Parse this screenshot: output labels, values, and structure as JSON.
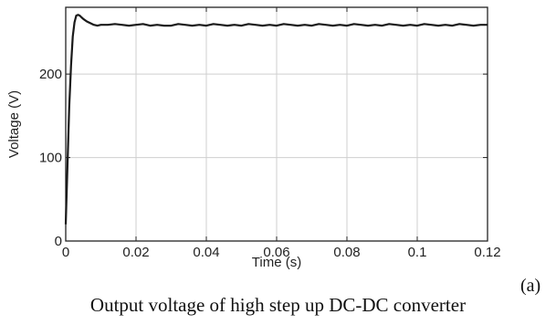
{
  "panel_label": "(a)",
  "caption": "Output voltage of high step up DC-DC converter",
  "chart_data": {
    "type": "line",
    "xlabel": "Time (s)",
    "ylabel": "Voltage (V)",
    "xlim": [
      0,
      0.12
    ],
    "ylim": [
      0,
      280
    ],
    "xticks": [
      0,
      0.02,
      0.04,
      0.06,
      0.08,
      0.1,
      0.12
    ],
    "xtick_labels": [
      "0",
      "0.02",
      "0.04",
      "0.06",
      "0.08",
      "0.1",
      "0.12"
    ],
    "yticks": [
      0,
      100,
      200
    ],
    "ytick_labels": [
      "0",
      "100",
      "200"
    ],
    "grid": true,
    "series": [
      {
        "color": "#1a1a1a",
        "x": [
          0,
          0.0005,
          0.001,
          0.0015,
          0.002,
          0.0025,
          0.003,
          0.0035,
          0.004,
          0.0045,
          0.005,
          0.006,
          0.007,
          0.008,
          0.009,
          0.01,
          0.012,
          0.014,
          0.016,
          0.018,
          0.02,
          0.022,
          0.024,
          0.026,
          0.028,
          0.03,
          0.032,
          0.034,
          0.036,
          0.038,
          0.04,
          0.042,
          0.044,
          0.046,
          0.048,
          0.05,
          0.052,
          0.054,
          0.056,
          0.058,
          0.06,
          0.062,
          0.064,
          0.066,
          0.068,
          0.07,
          0.072,
          0.074,
          0.076,
          0.078,
          0.08,
          0.082,
          0.084,
          0.086,
          0.088,
          0.09,
          0.092,
          0.094,
          0.096,
          0.098,
          0.1,
          0.102,
          0.104,
          0.106,
          0.108,
          0.11,
          0.112,
          0.114,
          0.116,
          0.118,
          0.12
        ],
        "y": [
          20,
          90,
          160,
          210,
          245,
          262,
          270,
          271,
          270,
          268,
          266,
          263,
          261,
          259,
          258,
          259,
          259,
          260,
          259,
          258,
          259,
          260,
          258,
          259,
          258,
          258,
          260,
          259,
          258,
          259,
          258,
          260,
          259,
          258,
          259,
          258,
          260,
          259,
          258,
          259,
          258,
          260,
          259,
          258,
          259,
          258,
          260,
          259,
          258,
          259,
          258,
          260,
          259,
          258,
          259,
          258,
          260,
          259,
          258,
          259,
          258,
          260,
          259,
          258,
          259,
          258,
          260,
          259,
          258,
          259,
          259
        ]
      }
    ]
  }
}
